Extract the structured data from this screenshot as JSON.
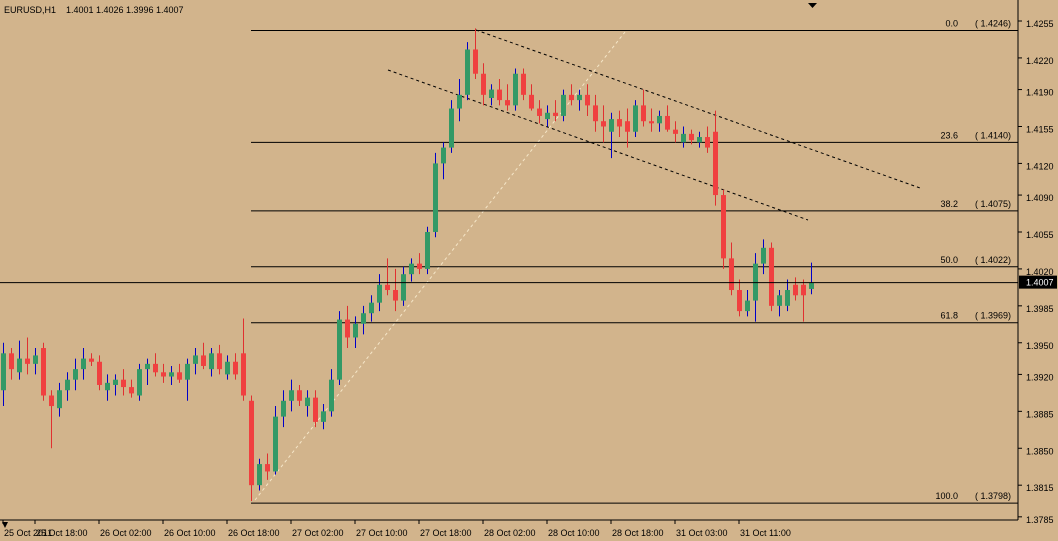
{
  "chart_data": {
    "type": "candlestick",
    "symbol": "EURUSD,H1",
    "categories": [
      "25 Oct 2011",
      null,
      null,
      null,
      "25 Oct 18:00",
      null,
      null,
      null,
      null,
      null,
      null,
      null,
      "26 Oct 02:00",
      null,
      null,
      null,
      null,
      null,
      null,
      null,
      "26 Oct 10:00",
      null,
      null,
      null,
      null,
      null,
      null,
      null,
      "26 Oct 18:00",
      null,
      null,
      null,
      null,
      null,
      null,
      null,
      "27 Oct 02:00",
      null,
      null,
      null,
      null,
      null,
      null,
      null,
      "27 Oct 10:00",
      null,
      null,
      null,
      null,
      null,
      null,
      null,
      "27 Oct 18:00",
      null,
      null,
      null,
      null,
      null,
      null,
      null,
      "28 Oct 02:00",
      null,
      null,
      null,
      null,
      null,
      null,
      null,
      "28 Oct 10:00",
      null,
      null,
      null,
      null,
      null,
      null,
      null,
      "28 Oct 18:00",
      null,
      null,
      null,
      null,
      null,
      null,
      null,
      "31 Oct 03:00",
      null,
      null,
      null,
      null,
      null,
      null,
      null,
      "31 Oct 11:00",
      null,
      null,
      null,
      null,
      null,
      null,
      null,
      null,
      null
    ],
    "open": [
      1.3905,
      1.394,
      1.3922,
      1.3935,
      1.393,
      1.3945,
      1.39,
      1.3888,
      1.3905,
      1.3915,
      1.3925,
      1.3935,
      1.3932,
      1.3905,
      1.391,
      1.3915,
      1.3908,
      1.39,
      1.3925,
      1.393,
      1.3922,
      1.3918,
      1.3922,
      1.3915,
      1.393,
      1.3938,
      1.3925,
      1.394,
      1.392,
      1.3932,
      1.394,
      1.3895,
      1.3815,
      1.3835,
      1.3828,
      1.388,
      1.3895,
      1.3905,
      1.389,
      1.3898,
      1.3875,
      1.3885,
      1.3915,
      1.3972,
      1.3955,
      1.3968,
      1.3978,
      1.3988,
      1.4005,
      1.4,
      1.399,
      1.4015,
      1.4025,
      1.402,
      1.4055,
      1.412,
      1.4135,
      1.4172,
      1.4185,
      1.4228,
      1.4205,
      1.4182,
      1.419,
      1.418,
      1.4175,
      1.4205,
      1.4185,
      1.4172,
      1.4162,
      1.4168,
      1.4165,
      1.4185,
      1.418,
      1.4185,
      1.4175,
      1.416,
      1.415,
      1.4162,
      1.416,
      1.415,
      1.4175,
      1.416,
      1.4158,
      1.4165,
      1.4152,
      1.414,
      1.4148,
      1.414,
      1.4145,
      1.415,
      1.409,
      1.403,
      1.4,
      1.398,
      1.399,
      1.4025,
      1.404,
      1.3985,
      1.3985,
      1.4005,
      1.4005,
      1.4001
    ],
    "high": [
      1.395,
      1.3945,
      1.3952,
      1.3955,
      1.3945,
      1.395,
      1.3905,
      1.3912,
      1.3922,
      1.3935,
      1.3945,
      1.394,
      1.3938,
      1.392,
      1.392,
      1.3925,
      1.3915,
      1.393,
      1.3935,
      1.394,
      1.393,
      1.3928,
      1.393,
      1.3935,
      1.3945,
      1.395,
      1.3945,
      1.3948,
      1.3938,
      1.394,
      1.3973,
      1.39,
      1.384,
      1.3845,
      1.389,
      1.3905,
      1.3915,
      1.391,
      1.3905,
      1.3905,
      1.3892,
      1.3925,
      1.398,
      1.3985,
      1.3975,
      1.3985,
      1.3995,
      1.4015,
      1.403,
      1.402,
      1.4022,
      1.403,
      1.4035,
      1.406,
      1.413,
      1.414,
      1.418,
      1.42,
      1.4235,
      1.4248,
      1.4215,
      1.4195,
      1.42,
      1.4195,
      1.421,
      1.421,
      1.4195,
      1.418,
      1.4175,
      1.418,
      1.419,
      1.4195,
      1.419,
      1.4195,
      1.4185,
      1.4175,
      1.4168,
      1.417,
      1.4172,
      1.418,
      1.419,
      1.4172,
      1.417,
      1.4175,
      1.416,
      1.4155,
      1.4152,
      1.415,
      1.4155,
      1.417,
      1.4095,
      1.4045,
      1.401,
      1.4,
      1.4035,
      1.4048,
      1.4045,
      1.4,
      1.401,
      1.4012,
      1.401,
      1.4026
    ],
    "low": [
      1.389,
      1.3915,
      1.3915,
      1.392,
      1.392,
      1.3895,
      1.385,
      1.388,
      1.3895,
      1.3905,
      1.3915,
      1.3928,
      1.3905,
      1.3895,
      1.39,
      1.39,
      1.3898,
      1.3895,
      1.391,
      1.3918,
      1.3912,
      1.391,
      1.3912,
      1.3895,
      1.392,
      1.3925,
      1.3918,
      1.392,
      1.3915,
      1.3915,
      1.3895,
      1.38,
      1.381,
      1.382,
      1.3825,
      1.387,
      1.3885,
      1.389,
      1.388,
      1.387,
      1.3868,
      1.388,
      1.391,
      1.3945,
      1.3945,
      1.3958,
      1.397,
      1.398,
      1.3995,
      1.398,
      1.3985,
      1.4008,
      1.4015,
      1.4015,
      1.405,
      1.4105,
      1.413,
      1.416,
      1.418,
      1.42,
      1.4175,
      1.4175,
      1.4175,
      1.417,
      1.417,
      1.418,
      1.417,
      1.4158,
      1.4155,
      1.416,
      1.416,
      1.4175,
      1.417,
      1.4165,
      1.415,
      1.414,
      1.4125,
      1.4145,
      1.4135,
      1.4145,
      1.4155,
      1.415,
      1.415,
      1.415,
      1.414,
      1.4135,
      1.4138,
      1.4135,
      1.413,
      1.408,
      1.402,
      1.3995,
      1.3975,
      1.3975,
      1.397,
      1.4015,
      1.398,
      1.3975,
      1.398,
      1.399,
      1.397,
      1.3996
    ],
    "close": [
      1.394,
      1.3925,
      1.3935,
      1.393,
      1.3938,
      1.39,
      1.389,
      1.3905,
      1.3915,
      1.3925,
      1.3935,
      1.3932,
      1.391,
      1.3912,
      1.3915,
      1.3908,
      1.3902,
      1.3925,
      1.393,
      1.3922,
      1.3918,
      1.3922,
      1.3915,
      1.393,
      1.3938,
      1.3928,
      1.394,
      1.3925,
      1.3932,
      1.392,
      1.39,
      1.3815,
      1.3835,
      1.3828,
      1.388,
      1.3895,
      1.3905,
      1.3895,
      1.3898,
      1.3875,
      1.3885,
      1.3915,
      1.3972,
      1.3955,
      1.3968,
      1.3978,
      1.3988,
      1.4005,
      1.4,
      1.399,
      1.4015,
      1.4025,
      1.402,
      1.4055,
      1.412,
      1.4135,
      1.4172,
      1.4185,
      1.4228,
      1.4205,
      1.4185,
      1.419,
      1.418,
      1.4175,
      1.4205,
      1.4185,
      1.4172,
      1.4165,
      1.4168,
      1.4165,
      1.4185,
      1.418,
      1.4185,
      1.4175,
      1.416,
      1.4155,
      1.4162,
      1.4155,
      1.415,
      1.4175,
      1.416,
      1.4158,
      1.4165,
      1.4152,
      1.4148,
      1.4148,
      1.4142,
      1.4145,
      1.4135,
      1.409,
      1.403,
      1.4,
      1.398,
      1.399,
      1.4025,
      1.404,
      1.3985,
      1.3995,
      1.4,
      1.3995,
      1.3995,
      1.4007
    ],
    "up_color": "#339966",
    "down_color": "#f04040",
    "up_wick_color": "#0000c8",
    "down_wick_color": "#e03030",
    "current_price": 1.4007,
    "ylim": [
      1.3782,
      1.4273
    ],
    "yticks": [
      1.4255,
      {
        "value": 1.422,
        "label": "1.4220"
      },
      {
        "value": 1.419,
        "label": "1.4190"
      },
      1.4155,
      {
        "value": 1.412,
        "label": "1.4120"
      },
      {
        "value": 1.409,
        "label": "1.4090"
      },
      1.4055,
      {
        "value": 1.402,
        "label": "1.4020"
      },
      1.3985,
      {
        "value": 1.395,
        "label": "1.3950"
      },
      {
        "value": 1.392,
        "label": "1.3920"
      },
      1.3885,
      {
        "value": 1.385,
        "label": "1.3850"
      },
      1.3815,
      1.3785
    ],
    "fibonacci": [
      {
        "level": {
          "value": 0,
          "label": "0.0"
        },
        "price": 1.4246,
        "price_label": "( 1.4246)"
      },
      {
        "level": 23.6,
        "price": 1.414,
        "price_label": "( 1.4140)"
      },
      {
        "level": 38.2,
        "price": 1.4075,
        "price_label": "( 1.4075)"
      },
      {
        "level": {
          "value": 50,
          "label": "50.0"
        },
        "price": 1.4022,
        "price_label": "( 1.4022)"
      },
      {
        "level": 61.8,
        "price": 1.3969,
        "price_label": "( 1.3969)"
      },
      {
        "level": {
          "value": 100,
          "label": "100.0"
        },
        "price": 1.3798,
        "price_label": "( 1.3798)"
      }
    ]
  }
}
